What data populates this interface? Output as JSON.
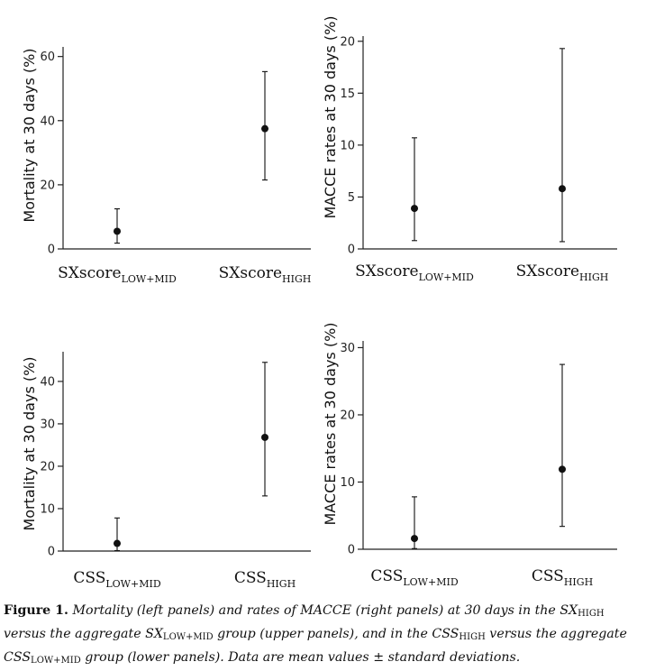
{
  "figure": {
    "caption_label": "Figure 1.",
    "caption_parts": [
      {
        "t": " Mortality (left panels) and rates of MACCE (right panels) at 30 days in the SX"
      },
      {
        "sub": "HIGH"
      },
      {
        "t": " versus the aggregate SX"
      },
      {
        "sub": "LOW+MID"
      },
      {
        "t": " group (upper panels), and in the CSS"
      },
      {
        "sub": "HIGH"
      },
      {
        "t": " versus the aggregate CSS"
      },
      {
        "sub": "LOW+MID"
      },
      {
        "t": " group (lower panels). Data are mean values ± standard deviations."
      }
    ]
  },
  "chart_data": [
    {
      "type": "scatter",
      "panel": "upper-left",
      "ylabel": "Mortality at 30 days (%)",
      "yticks": [
        0,
        20,
        40,
        60
      ],
      "ylim": [
        0,
        63
      ],
      "categories": [
        {
          "base": "SXscore",
          "sub": "LOW+MID"
        },
        {
          "base": "SXscore",
          "sub": "HIGH"
        }
      ],
      "means": [
        5.5,
        37.5
      ],
      "lower": [
        1.8,
        21.5
      ],
      "upper": [
        12.5,
        55.3
      ]
    },
    {
      "type": "scatter",
      "panel": "upper-right",
      "ylabel": "MACCE rates at 30 days (%)",
      "yticks": [
        0,
        5,
        10,
        15,
        20
      ],
      "ylim": [
        0,
        20.5
      ],
      "categories": [
        {
          "base": "SXscore",
          "sub": "LOW+MID"
        },
        {
          "base": "SXscore",
          "sub": "HIGH"
        }
      ],
      "means": [
        3.9,
        5.8
      ],
      "lower": [
        0.8,
        0.7
      ],
      "upper": [
        10.7,
        19.3
      ]
    },
    {
      "type": "scatter",
      "panel": "lower-left",
      "ylabel": "Mortality at 30 days (%)",
      "yticks": [
        0,
        10,
        20,
        30,
        40
      ],
      "ylim": [
        0,
        47
      ],
      "categories": [
        {
          "base": "CSS",
          "sub": "LOW+MID"
        },
        {
          "base": "CSS",
          "sub": "HIGH"
        }
      ],
      "means": [
        1.8,
        26.8
      ],
      "lower": [
        0.1,
        13.0
      ],
      "upper": [
        7.8,
        44.5
      ]
    },
    {
      "type": "scatter",
      "panel": "lower-right",
      "ylabel": "MACCE rates at 30 days (%)",
      "yticks": [
        0,
        10,
        20,
        30
      ],
      "ylim": [
        0,
        31
      ],
      "categories": [
        {
          "base": "CSS",
          "sub": "LOW+MID"
        },
        {
          "base": "CSS",
          "sub": "HIGH"
        }
      ],
      "means": [
        1.6,
        11.9
      ],
      "lower": [
        0.1,
        3.4
      ],
      "upper": [
        7.8,
        27.5
      ]
    }
  ]
}
